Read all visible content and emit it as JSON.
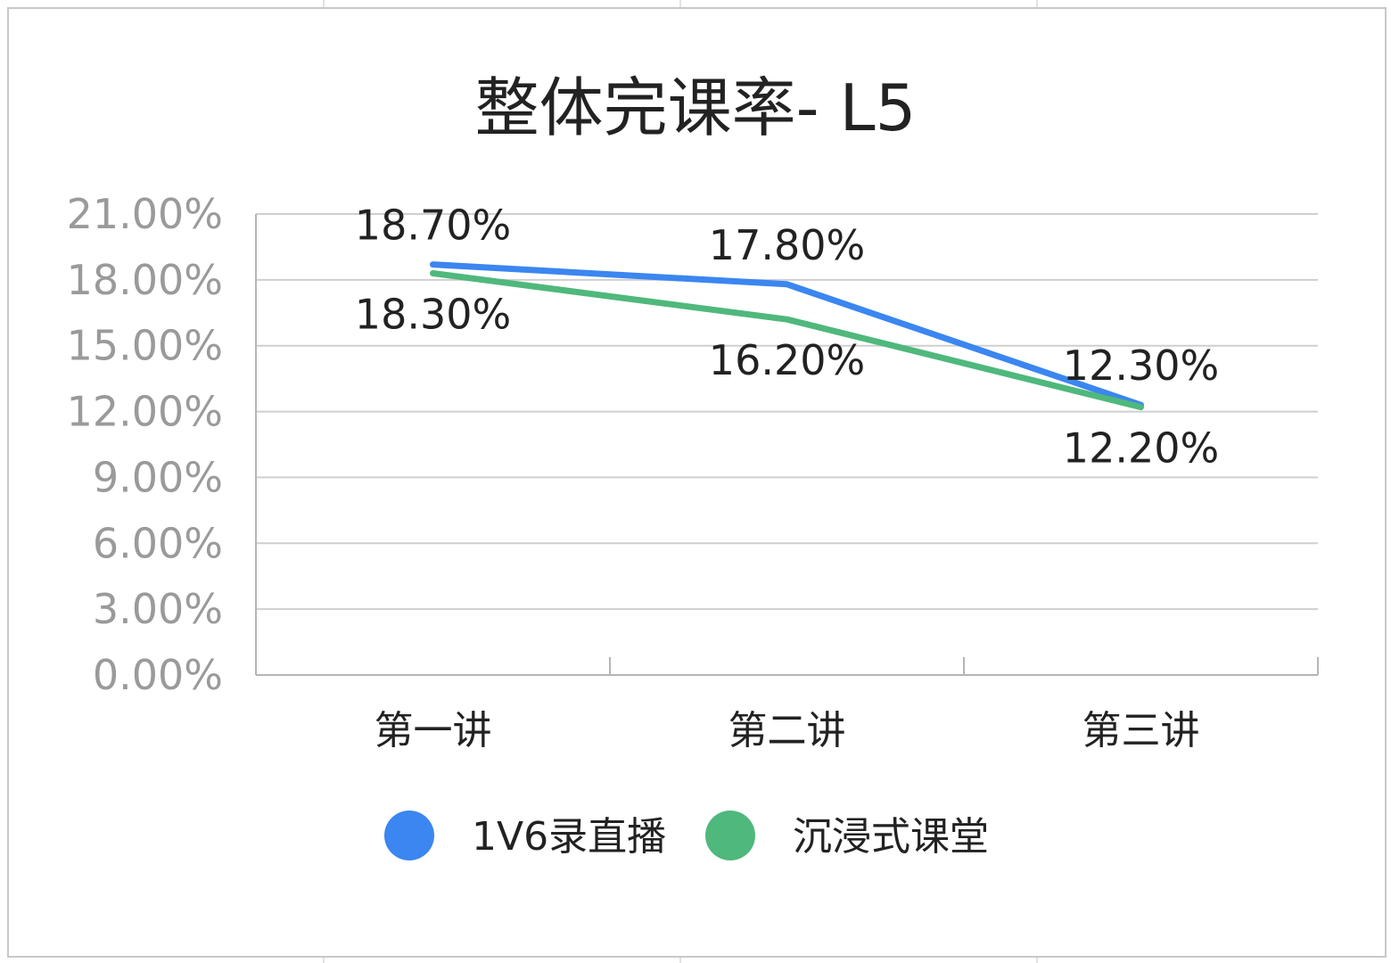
{
  "chart_data": {
    "type": "line",
    "title": "整体完课率- L5",
    "categories": [
      "第一讲",
      "第二讲",
      "第三讲"
    ],
    "series": [
      {
        "name": "1V6录直播",
        "values": [
          18.7,
          17.8,
          12.3
        ],
        "labels": [
          "18.70%",
          "17.80%",
          "12.30%"
        ],
        "color": "#3b86f0"
      },
      {
        "name": "沉浸式课堂",
        "values": [
          18.3,
          16.2,
          12.2
        ],
        "labels": [
          "18.30%",
          "16.20%",
          "12.20%"
        ],
        "color": "#4fb87c"
      }
    ],
    "ylim": [
      0,
      21
    ],
    "yticks": [
      0,
      3,
      6,
      9,
      12,
      15,
      18,
      21
    ],
    "ytick_labels": [
      "0.00%",
      "3.00%",
      "6.00%",
      "9.00%",
      "12.00%",
      "15.00%",
      "18.00%",
      "21.00%"
    ],
    "grid": true,
    "legend": "bottom",
    "xlabel": "",
    "ylabel": ""
  }
}
